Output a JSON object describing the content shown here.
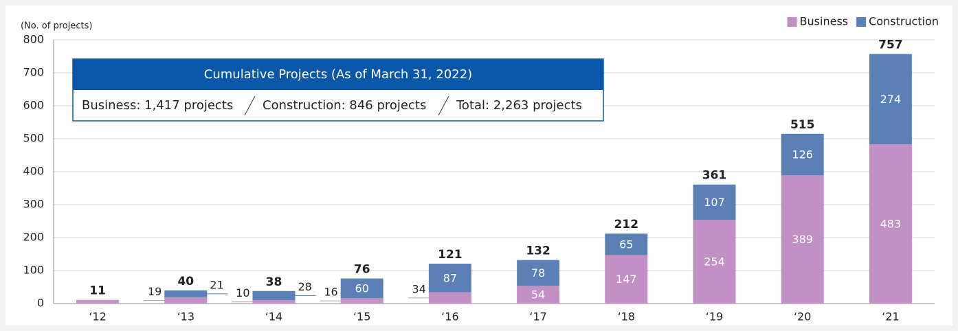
{
  "chart_data": {
    "type": "stacked-bar",
    "y_label": "(No. of projects)",
    "categories": [
      "‘12",
      "‘13",
      "‘14",
      "‘15",
      "‘16",
      "‘17",
      "‘18",
      "‘19",
      "‘20",
      "‘21"
    ],
    "series": [
      {
        "name": "Business",
        "color": "#c290c4",
        "values": [
          11,
          19,
          10,
          16,
          34,
          54,
          147,
          254,
          389,
          483
        ]
      },
      {
        "name": "Construction",
        "color": "#5b80b6",
        "values": [
          null,
          21,
          28,
          60,
          87,
          78,
          65,
          107,
          126,
          274
        ]
      }
    ],
    "totals": [
      11,
      40,
      38,
      76,
      121,
      132,
      212,
      361,
      515,
      757
    ],
    "ylim": [
      0,
      800
    ],
    "yticks": [
      0,
      100,
      200,
      300,
      400,
      500,
      600,
      700,
      800
    ],
    "grid": true,
    "legend": "top-right",
    "annotation": {
      "title": "Cumulative Projects (As of March 31, 2022)",
      "items": [
        "Business: 1,417 projects",
        "Construction: 846 projects",
        "Total: 2,263 projects"
      ]
    }
  }
}
